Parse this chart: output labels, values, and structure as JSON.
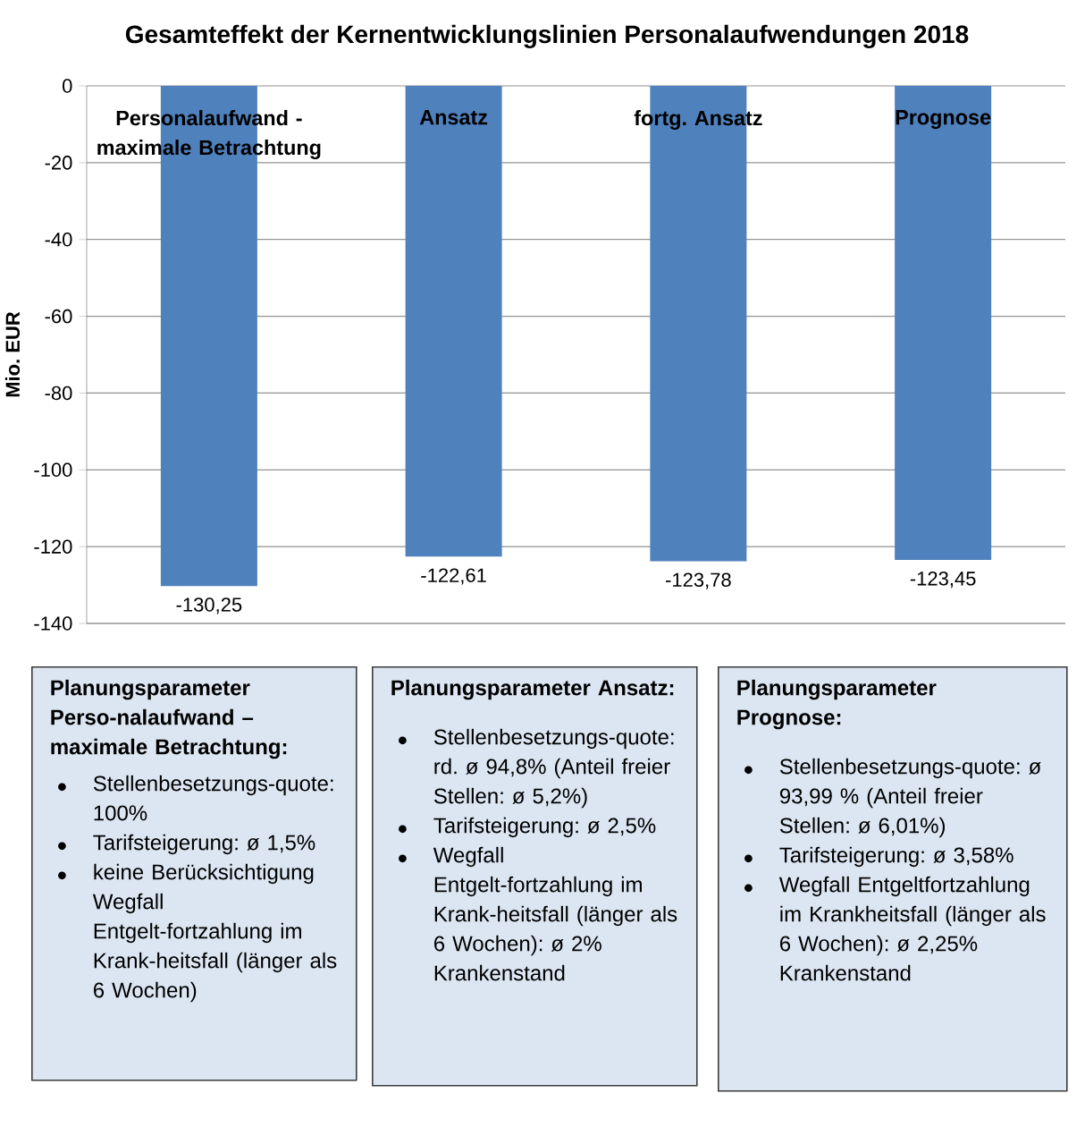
{
  "chart_data": [
    {
      "type": "bar",
      "title": "Gesamteffekt der Kernentwicklungslinien Personalaufwendungen 2018",
      "ylabel": "Mio. EUR",
      "categories": [
        "Personalaufwand - maximale Betrachtung",
        "Ansatz",
        "fortg. Ansatz",
        "Prognose"
      ],
      "values": [
        -130.25,
        -122.61,
        -123.78,
        -123.45
      ],
      "value_labels": [
        "-130,25",
        "-122,61",
        "-123,78",
        "-123,45"
      ],
      "color": "#4f81bd",
      "ylim": [
        -140,
        0
      ],
      "yticks": [
        0,
        -20,
        -40,
        -60,
        -80,
        -100,
        -120,
        -140
      ],
      "grid": "y"
    },
    {
      "type": "other",
      "title": "Planungsparameter Perso-nalaufwand – maximale Betrachtung:",
      "annotations": [
        "Stellenbesetzungs-quote: 100%",
        "Tarifsteigerung: ø 1,5%",
        "keine Berücksichtigung Wegfall Entgelt-fortzahlung im Krank-heitsfall (länger als 6 Wochen)"
      ]
    },
    {
      "type": "other",
      "title": "Planungsparameter Ansatz:",
      "annotations": [
        "Stellenbesetzungs-quote: rd. ø 94,8% (Anteil freier Stellen: ø 5,2%)",
        "Tarifsteigerung: ø 2,5%",
        "Wegfall Entgelt-fortzahlung im Krank-heitsfall (länger als 6 Wochen): ø 2% Krankenstand"
      ]
    },
    {
      "type": "other",
      "title": "Planungsparameter Prognose:",
      "annotations": [
        "Stellenbesetzungs-quote: ø 93,99 % (Anteil freier Stellen: ø 6,01%)",
        "Tarifsteigerung: ø 3,58%",
        "Wegfall Entgeltfortzahlung im Krankheitsfall (länger als 6 Wochen): ø 2,25% Krankenstand"
      ]
    }
  ]
}
